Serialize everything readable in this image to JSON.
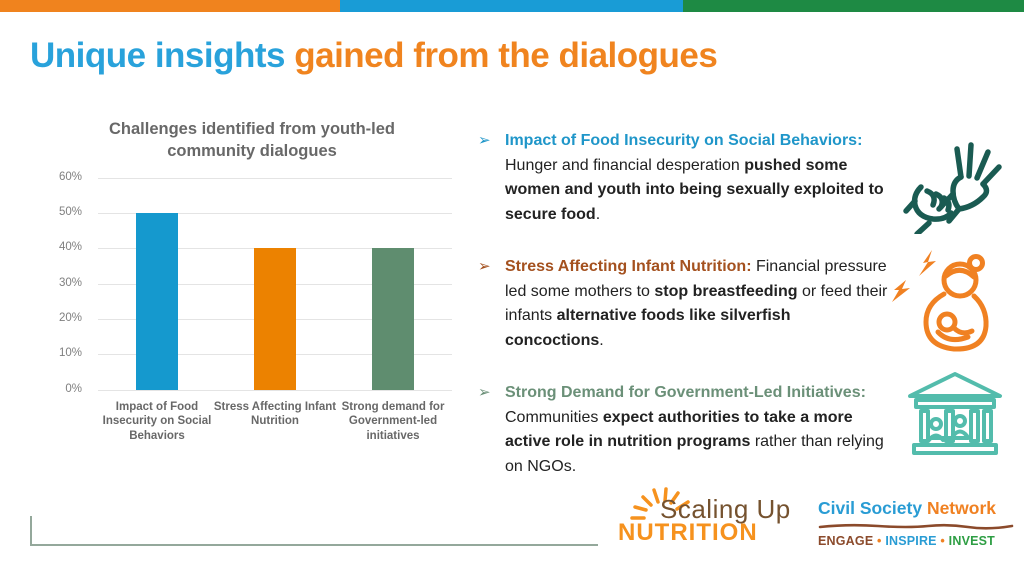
{
  "top_bar": {
    "colors": [
      "#F0831E",
      "#199CD6",
      "#1E8A44"
    ]
  },
  "title": {
    "part1": "Unique insights",
    "part2": " gained from the dialogues",
    "part1_color": "#29A2DB",
    "part2_color": "#F0841F"
  },
  "chart_data": {
    "type": "bar",
    "title": "Challenges identified from youth-led community dialogues",
    "categories": [
      "Impact of Food Insecurity on Social Behaviors",
      "Stress Affecting Infant Nutrition",
      "Strong demand for Government-led initiatives"
    ],
    "values": [
      50,
      40,
      40
    ],
    "bar_colors": [
      "#1599CE",
      "#EC8200",
      "#5F8D6F"
    ],
    "yticks": [
      "60%",
      "50%",
      "40%",
      "30%",
      "20%",
      "10%",
      "0%"
    ],
    "ylim": [
      0,
      60
    ],
    "xlabel": "",
    "ylabel": "",
    "grid": true,
    "legend": false
  },
  "bullets": {
    "marker": "➢",
    "items": [
      {
        "color": "#1F96C9",
        "header": "Impact of Food Insecurity on Social Behaviors:",
        "segments": [
          {
            "text": " Hunger and financial desperation ",
            "bold": false
          },
          {
            "text": "pushed some women and youth into being sexually exploited to secure food",
            "bold": true
          },
          {
            "text": ".",
            "bold": false
          }
        ],
        "icon": "hand-grabbing-wrist-icon",
        "icon_color": "#1A5B52"
      },
      {
        "color": "#A4511F",
        "header": "Stress Affecting Infant Nutrition:",
        "segments": [
          {
            "text": " Financial pressure led some mothers to ",
            "bold": false
          },
          {
            "text": "stop breastfeeding",
            "bold": true
          },
          {
            "text": " or feed their infants ",
            "bold": false
          },
          {
            "text": "alternative foods like silverfish concoctions",
            "bold": true
          },
          {
            "text": ".",
            "bold": false
          }
        ],
        "icon": "stressed-mother-nursing-icon",
        "icon_color": "#F08122"
      },
      {
        "color": "#6B9078",
        "header": "Strong Demand for Government-Led Initiatives:",
        "segments": [
          {
            "text": " Communities ",
            "bold": false
          },
          {
            "text": "expect authorities to take a more active role in nutrition programs",
            "bold": true
          },
          {
            "text": " rather than relying on NGOs.",
            "bold": false
          }
        ],
        "icon": "government-building-icon",
        "icon_color": "#53BCAC"
      }
    ]
  },
  "footer": {
    "sun": {
      "line1": "Scaling Up",
      "line2": "NUTRITION",
      "line1_color": "#75522F",
      "line2_color": "#F6921E",
      "rays_color": "#F6921E"
    },
    "csn": {
      "part1": "Civil Society ",
      "part2": "Network",
      "part1_color": "#299CD4",
      "part2_color": "#F08122",
      "squiggle_color": "#8B4A2B",
      "separator": " • ",
      "separator_color": "#F08122",
      "tagline": [
        {
          "text": "ENGAGE",
          "color": "#8B4A2B"
        },
        {
          "text": "INSPIRE",
          "color": "#299CD4"
        },
        {
          "text": "INVEST",
          "color": "#2E9E44"
        }
      ]
    }
  }
}
